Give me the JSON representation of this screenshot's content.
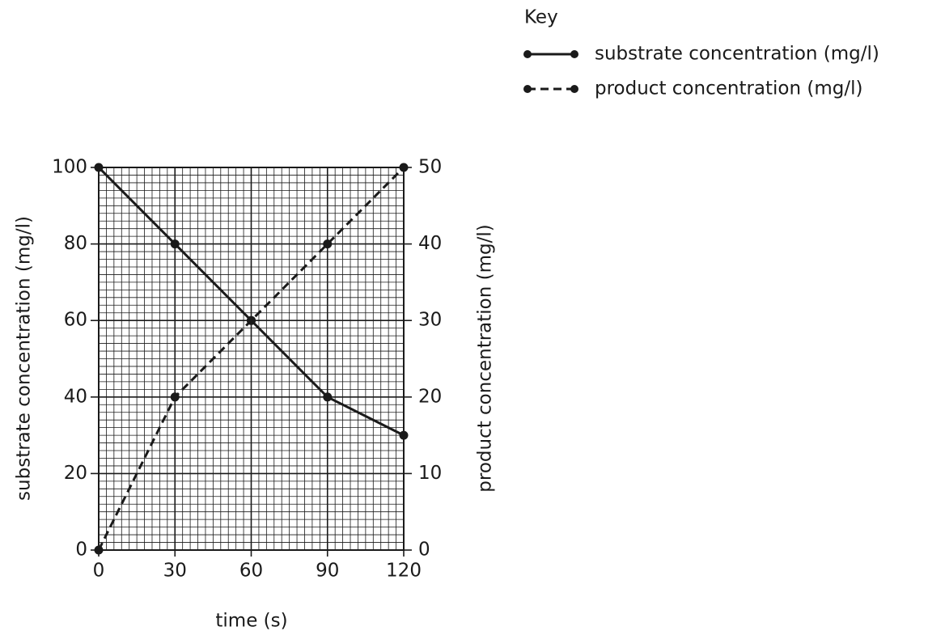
{
  "chart_data": {
    "type": "line",
    "x_label": "time (s)",
    "y_label": "substrate concentration (mg/l)",
    "y2_label": "product concentration (mg/l)",
    "legend_title": "Key",
    "legend": "upper right",
    "x": [
      0,
      30,
      60,
      90,
      120
    ],
    "series": [
      {
        "name": "substrate concentration (mg/l)",
        "color": "#1a1a1a",
        "style": "solid",
        "axis": "y",
        "values": [
          100,
          80,
          60,
          40,
          30
        ]
      },
      {
        "name": "product concentration (mg/l)",
        "color": "#1a1a1a",
        "style": "dashed",
        "axis": "y2",
        "values": [
          0,
          20,
          30,
          40,
          50
        ]
      }
    ],
    "xlim": [
      0,
      120
    ],
    "xticks": [
      0,
      30,
      60,
      90,
      120
    ],
    "ylim": [
      0,
      100
    ],
    "yticks": [
      0,
      20,
      40,
      60,
      80,
      100
    ],
    "y2lim": [
      0,
      50
    ],
    "y2ticks": [
      0,
      10,
      20,
      30,
      40,
      50
    ],
    "grid": true,
    "minor_grid": {
      "x": 3,
      "y": 2
    }
  }
}
